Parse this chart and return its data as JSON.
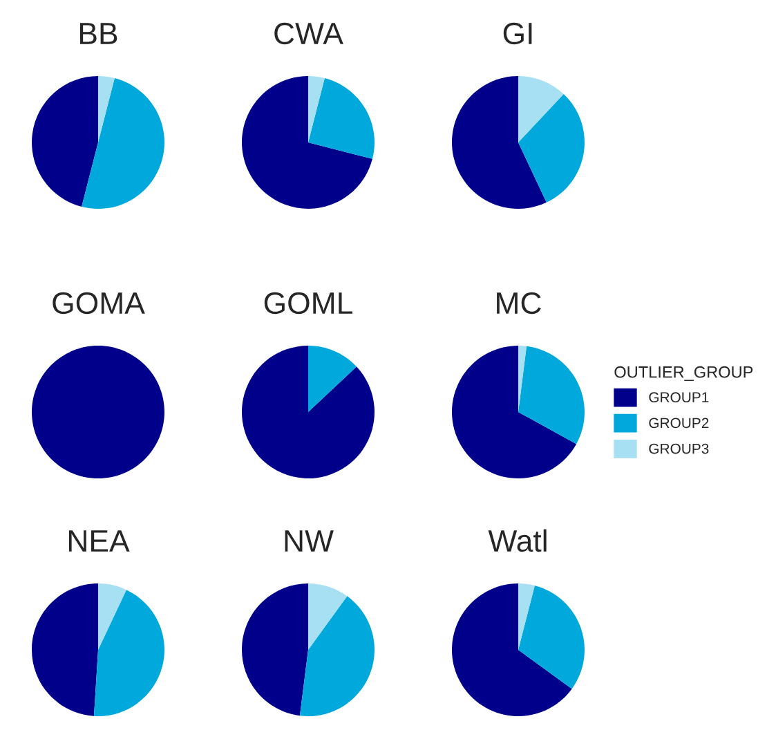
{
  "chart_data": [
    {
      "type": "pie",
      "title": "BB",
      "categories": [
        "GROUP1",
        "GROUP2",
        "GROUP3"
      ],
      "values": [
        46,
        50,
        4
      ],
      "colors": [
        "#00008b",
        "#00a8dc",
        "#a6e0f2"
      ],
      "legend": "right",
      "legend_title": "OUTLIER_GROUP"
    },
    {
      "type": "pie",
      "title": "CWA",
      "categories": [
        null,
        null,
        null
      ],
      "values": [
        71,
        25,
        4
      ],
      "colors": [
        "#00008b",
        "#00a8dc",
        "#a6e0f2"
      ]
    },
    {
      "type": "pie",
      "title": "GI",
      "categories": [
        null,
        null,
        null
      ],
      "values": [
        57,
        31,
        12
      ],
      "colors": [
        "#00008b",
        "#00a8dc",
        "#a6e0f2"
      ]
    },
    {
      "type": "pie",
      "title": "GOMA",
      "categories": [
        null,
        null,
        null
      ],
      "values": [
        100,
        0,
        0
      ],
      "colors": [
        "#00008b",
        "#00a8dc",
        "#a6e0f2"
      ]
    },
    {
      "type": "pie",
      "title": "GOML",
      "categories": [
        null,
        null,
        null
      ],
      "values": [
        87,
        13,
        0
      ],
      "colors": [
        "#00008b",
        "#00a8dc",
        "#a6e0f2"
      ]
    },
    {
      "type": "pie",
      "title": "MC",
      "categories": [
        null,
        null,
        null
      ],
      "values": [
        67,
        31,
        2
      ],
      "colors": [
        "#00008b",
        "#00a8dc",
        "#a6e0f2"
      ]
    },
    {
      "type": "pie",
      "title": "NEA",
      "categories": [
        null,
        null,
        null
      ],
      "values": [
        49,
        44,
        7
      ],
      "colors": [
        "#00008b",
        "#00a8dc",
        "#a6e0f2"
      ]
    },
    {
      "type": "pie",
      "title": "NW",
      "categories": [
        null,
        null,
        null
      ],
      "values": [
        48,
        42,
        10
      ],
      "colors": [
        "#00008b",
        "#00a8dc",
        "#a6e0f2"
      ]
    },
    {
      "type": "pie",
      "title": "Watl",
      "categories": [
        null,
        null,
        null
      ],
      "values": [
        65,
        31,
        4
      ],
      "colors": [
        "#00008b",
        "#00a8dc",
        "#a6e0f2"
      ]
    }
  ]
}
